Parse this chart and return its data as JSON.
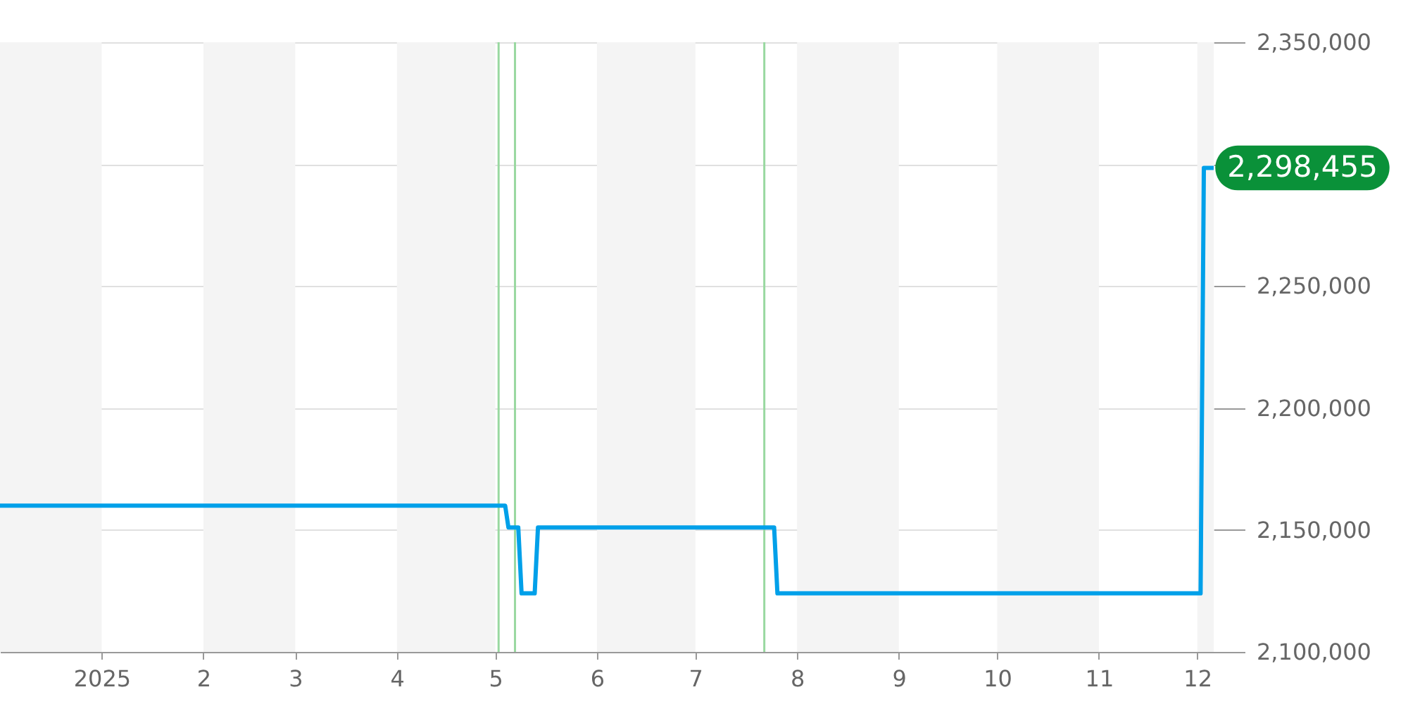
{
  "chart_data": {
    "type": "line",
    "x": [
      "2024-12-01",
      "2025-05-04",
      "2025-05-05",
      "2025-05-08",
      "2025-05-09",
      "2025-05-13",
      "2025-05-14",
      "2025-07-25",
      "2025-07-26",
      "2025-12-02",
      "2025-12-03",
      "2025-12-06"
    ],
    "series": [
      {
        "color": "#00a0e9",
        "values": [
          2160000,
          2160000,
          2151000,
          2151000,
          2124000,
          2124000,
          2151000,
          2151000,
          2124000,
          2124000,
          2298455,
          2298455
        ],
        "value_labels": [
          null,
          null,
          null,
          null,
          null,
          null,
          null,
          null,
          null,
          null,
          null,
          "2,298,455"
        ]
      }
    ],
    "xlim": [
      "2024-12-01",
      "2025-12-06"
    ],
    "xticks": [
      {
        "value": "2025-01-01",
        "label": "2025"
      },
      {
        "value": "2025-02-01",
        "label": "2"
      },
      {
        "value": "2025-03-01",
        "label": "3"
      },
      {
        "value": "2025-04-01",
        "label": "4"
      },
      {
        "value": "2025-05-01",
        "label": "5"
      },
      {
        "value": "2025-06-01",
        "label": "6"
      },
      {
        "value": "2025-07-01",
        "label": "7"
      },
      {
        "value": "2025-08-01",
        "label": "8"
      },
      {
        "value": "2025-09-01",
        "label": "9"
      },
      {
        "value": "2025-10-01",
        "label": "10"
      },
      {
        "value": "2025-11-01",
        "label": "11"
      },
      {
        "value": "2025-12-01",
        "label": "12"
      }
    ],
    "ylim": [
      2100000,
      2350000
    ],
    "yticks": [
      {
        "value": 2100000,
        "label": "2,100,000"
      },
      {
        "value": 2150000,
        "label": "2,150,000"
      },
      {
        "value": 2200000,
        "label": "2,200,000"
      },
      {
        "value": 2250000,
        "label": "2,250,000"
      },
      {
        "value": 2300000,
        "label": null
      },
      {
        "value": 2350000,
        "label": "2,350,000"
      }
    ],
    "ref_lines": [
      {
        "axis": "x",
        "value": "2025-05-02",
        "color": "#99d8a0"
      },
      {
        "axis": "x",
        "value": "2025-05-07",
        "color": "#99d8a0"
      },
      {
        "axis": "x",
        "value": "2025-07-22",
        "color": "#99d8a0"
      }
    ],
    "bands": [
      {
        "axis": "x",
        "from": "2024-12-01",
        "to": "2025-01-01",
        "color": "#f4f4f4"
      },
      {
        "axis": "x",
        "from": "2025-02-01",
        "to": "2025-03-01",
        "color": "#f4f4f4"
      },
      {
        "axis": "x",
        "from": "2025-04-01",
        "to": "2025-05-01",
        "color": "#f4f4f4"
      },
      {
        "axis": "x",
        "from": "2025-06-01",
        "to": "2025-07-01",
        "color": "#f4f4f4"
      },
      {
        "axis": "x",
        "from": "2025-08-01",
        "to": "2025-09-01",
        "color": "#f4f4f4"
      },
      {
        "axis": "x",
        "from": "2025-10-01",
        "to": "2025-11-01",
        "color": "#f4f4f4"
      },
      {
        "axis": "x",
        "from": "2025-12-01",
        "to": "2025-12-06",
        "color": "#f4f4f4"
      }
    ],
    "grid": "y",
    "marker": "none",
    "line_style": "solid"
  }
}
